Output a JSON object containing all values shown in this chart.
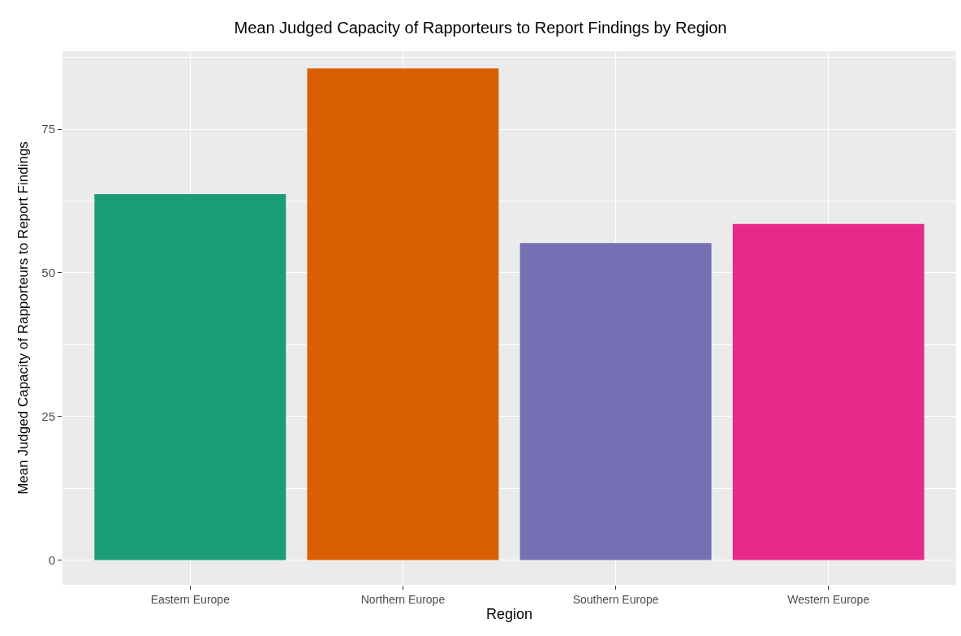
{
  "chart_data": {
    "type": "bar",
    "title": "Mean Judged Capacity of Rapporteurs to Report Findings by Region",
    "xlabel": "Region",
    "ylabel": "Mean Judged Capacity of Rapporteurs to Report Findings",
    "categories": [
      "Eastern Europe",
      "Northern Europe",
      "Southern Europe",
      "Western Europe"
    ],
    "values": [
      63.7,
      85.6,
      55.2,
      58.5
    ],
    "colors": [
      "#1b9e77",
      "#d95f02",
      "#7570b3",
      "#e7298a"
    ],
    "ylim": [
      -4.3,
      88.6
    ],
    "yticks": [
      0,
      25,
      50,
      75
    ],
    "grid": true
  }
}
